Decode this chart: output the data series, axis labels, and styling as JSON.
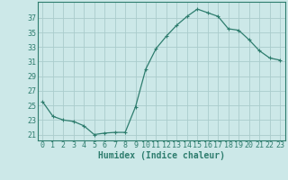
{
  "x": [
    0,
    1,
    2,
    3,
    4,
    5,
    6,
    7,
    8,
    9,
    10,
    11,
    12,
    13,
    14,
    15,
    16,
    17,
    18,
    19,
    20,
    21,
    22,
    23
  ],
  "y": [
    25.5,
    23.5,
    23.0,
    22.8,
    22.2,
    21.0,
    21.2,
    21.3,
    21.3,
    24.8,
    30.0,
    32.8,
    34.5,
    36.0,
    37.2,
    38.2,
    37.7,
    37.2,
    35.5,
    35.3,
    34.0,
    32.5,
    31.5,
    31.2
  ],
  "line_color": "#2e7d6e",
  "marker": "+",
  "marker_size": 3,
  "marker_linewidth": 0.8,
  "line_width": 0.9,
  "bg_color": "#cce8e8",
  "grid_color": "#aacccc",
  "xlabel": "Humidex (Indice chaleur)",
  "yticks": [
    21,
    23,
    25,
    27,
    29,
    31,
    33,
    35,
    37
  ],
  "xticks": [
    0,
    1,
    2,
    3,
    4,
    5,
    6,
    7,
    8,
    9,
    10,
    11,
    12,
    13,
    14,
    15,
    16,
    17,
    18,
    19,
    20,
    21,
    22,
    23
  ],
  "ylim": [
    20.2,
    39.2
  ],
  "xlim": [
    -0.5,
    23.5
  ],
  "tick_fontsize": 6,
  "xlabel_fontsize": 7
}
